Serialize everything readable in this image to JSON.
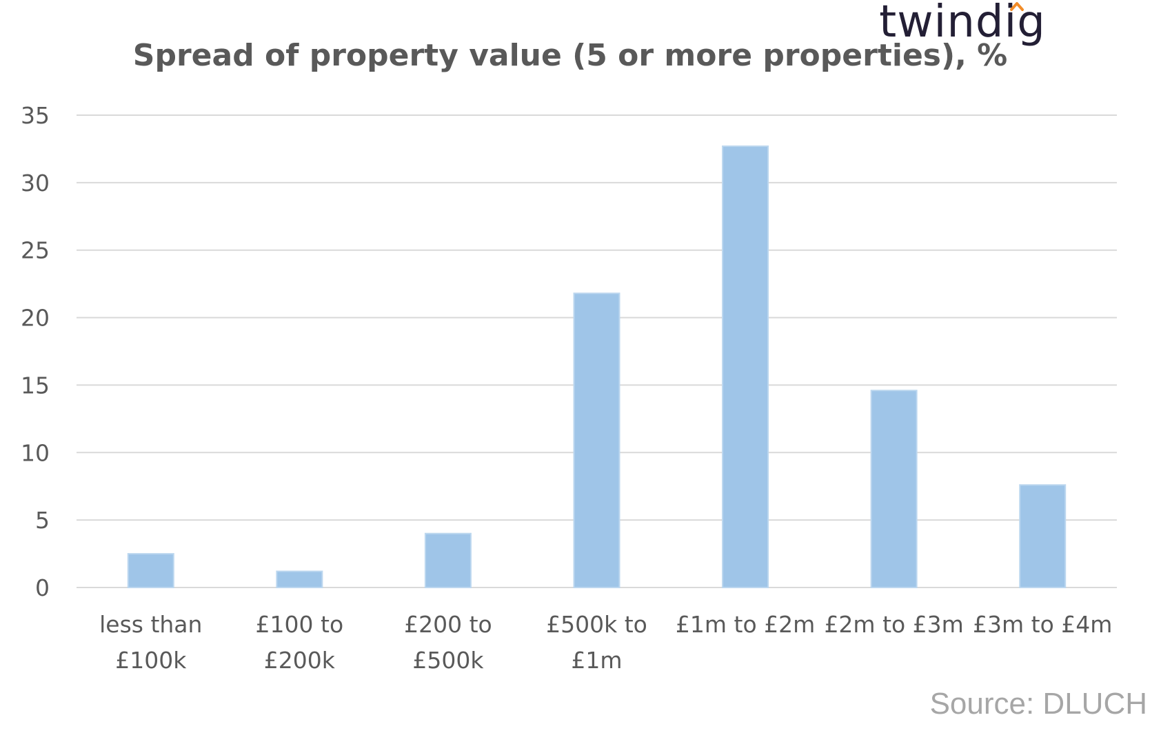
{
  "brand": {
    "name": "twindig",
    "accent_color": "#f28c28"
  },
  "source": "Source: DLUCH",
  "chart_data": {
    "type": "bar",
    "title": "Spread of property value (5 or more properties), %",
    "categories": [
      [
        "less than",
        "£100k"
      ],
      [
        "£100 to",
        "£200k"
      ],
      [
        "£200 to",
        "£500k"
      ],
      [
        "£500k to",
        "£1m"
      ],
      [
        "£1m to £2m"
      ],
      [
        "£2m to £3m"
      ],
      [
        "£3m to £4m"
      ]
    ],
    "values": [
      2.5,
      1.2,
      4.0,
      21.8,
      32.7,
      14.6,
      7.6
    ],
    "ylim": [
      0,
      35
    ],
    "yticks": [
      0,
      5,
      10,
      15,
      20,
      25,
      30,
      35
    ],
    "bar_color": "#9fc5e8",
    "grid": true,
    "legend": "none"
  }
}
